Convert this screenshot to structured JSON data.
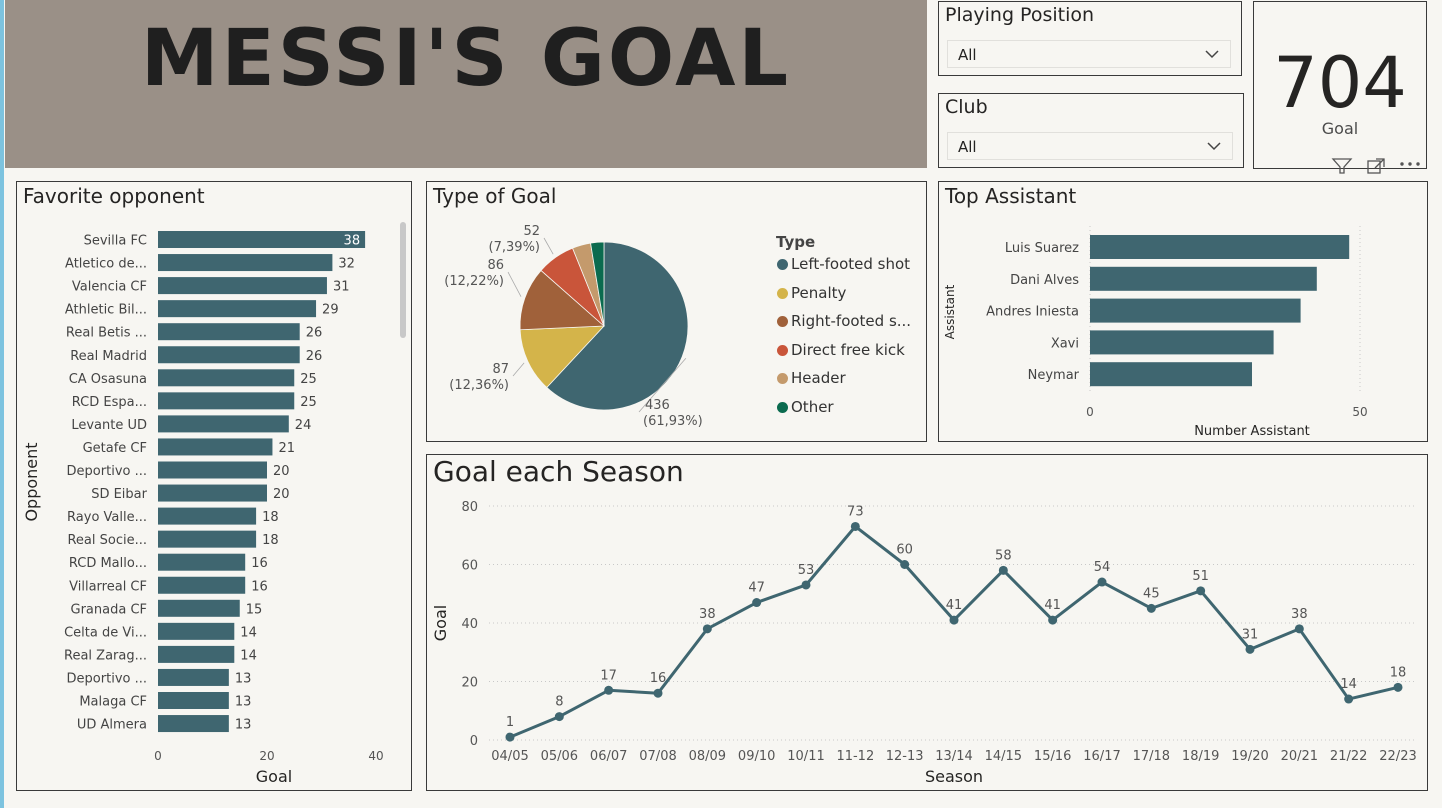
{
  "title": "MESSI'S GOAL",
  "slicers": {
    "playing_position": {
      "label": "Playing Position",
      "value": "All"
    },
    "club": {
      "label": "Club",
      "value": "All"
    }
  },
  "card": {
    "value": "704",
    "label": "Goal"
  },
  "colors": {
    "bar": "#3f6670",
    "banner": "#9a9087",
    "background": "#f7f6f2"
  },
  "chart_data": [
    {
      "type": "bar",
      "orientation": "horizontal",
      "title": "Favorite opponent",
      "xlabel": "Goal",
      "ylabel": "Opponent",
      "xlim": [
        0,
        40
      ],
      "xticks": [
        0,
        20,
        40
      ],
      "categories": [
        "Sevilla FC",
        "Atletico de...",
        "Valencia CF",
        "Athletic Bil...",
        "Real Betis ...",
        "Real Madrid",
        "CA Osasuna",
        "RCD Espa...",
        "Levante UD",
        "Getafe CF",
        "Deportivo ...",
        "SD Eibar",
        "Rayo Valle...",
        "Real Socie...",
        "RCD Mallo...",
        "Villarreal CF",
        "Granada CF",
        "Celta de Vi...",
        "Real Zarag...",
        "Deportivo ...",
        "Malaga CF",
        "UD Almera"
      ],
      "values": [
        38,
        32,
        31,
        29,
        26,
        26,
        25,
        25,
        24,
        21,
        20,
        20,
        18,
        18,
        16,
        16,
        15,
        14,
        14,
        13,
        13,
        13
      ]
    },
    {
      "type": "pie",
      "title": "Type of Goal",
      "legend_title": "Type",
      "legend_position": "right",
      "slices": [
        {
          "name": "Left-footed shot",
          "value": 436,
          "label": "436",
          "pct": "(61,93%)",
          "color": "#3f6670"
        },
        {
          "name": "Penalty",
          "value": 87,
          "label": "87",
          "pct": "(12,36%)",
          "color": "#d4b44a"
        },
        {
          "name": "Right-footed s...",
          "value": 86,
          "label": "86",
          "pct": "(12,22%)",
          "color": "#a0613a"
        },
        {
          "name": "Direct free kick",
          "value": 52,
          "label": "52",
          "pct": "(7,39%)",
          "color": "#c9553a"
        },
        {
          "name": "Header",
          "value": 25,
          "label": "",
          "pct": "",
          "color": "#c49a6c"
        },
        {
          "name": "Other",
          "value": 18,
          "label": "",
          "pct": "",
          "color": "#0b6b4f"
        }
      ]
    },
    {
      "type": "bar",
      "orientation": "horizontal",
      "title": "Top Assistant",
      "xlabel": "Number Assistant",
      "ylabel": "Assistant",
      "xlim": [
        0,
        50
      ],
      "xticks": [
        0,
        50
      ],
      "categories": [
        "Luis Suarez",
        "Dani Alves",
        "Andres Iniesta",
        "Xavi",
        "Neymar"
      ],
      "values": [
        48,
        42,
        39,
        34,
        30
      ]
    },
    {
      "type": "line",
      "title": "Goal each Season",
      "xlabel": "Season",
      "ylabel": "Goal",
      "ylim": [
        0,
        80
      ],
      "yticks": [
        0,
        20,
        40,
        60,
        80
      ],
      "grid": true,
      "categories": [
        "04/05",
        "05/06",
        "06/07",
        "07/08",
        "08/09",
        "09/10",
        "10/11",
        "11-12",
        "12-13",
        "13/14",
        "14/15",
        "15/16",
        "16/17",
        "17/18",
        "18/19",
        "19/20",
        "20/21",
        "21/22",
        "22/23"
      ],
      "values": [
        1,
        8,
        17,
        16,
        38,
        47,
        53,
        73,
        60,
        41,
        58,
        41,
        54,
        45,
        51,
        31,
        38,
        14,
        18
      ]
    }
  ]
}
